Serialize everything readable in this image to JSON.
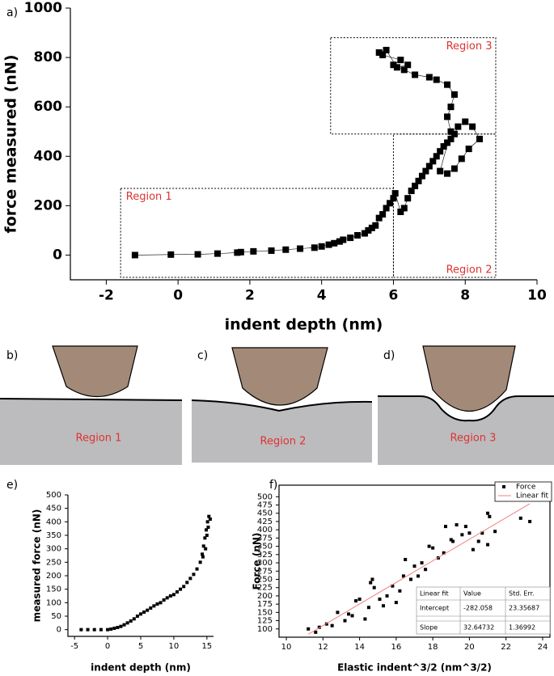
{
  "chart_data": [
    {
      "type": "line",
      "panel_label": "a)",
      "x_label": "indent depth (nm)",
      "y_label": "force measured (nN)",
      "color": "#000000",
      "annotations": [
        "Region 1",
        "Region 2",
        "Region 3"
      ],
      "xlim": [
        -3,
        10
      ],
      "xticks": [
        -2,
        0,
        2,
        4,
        6,
        8,
        10
      ],
      "ylim": [
        -100,
        1000
      ],
      "yticks": [
        0,
        200,
        400,
        600,
        800,
        1000
      ],
      "x": [
        -1.2,
        -0.2,
        0.55,
        1.1,
        1.65,
        1.75,
        2.1,
        2.6,
        3.0,
        3.4,
        3.8,
        4.0,
        4.2,
        4.35,
        4.5,
        4.6,
        4.8,
        5.0,
        5.2,
        5.3,
        5.4,
        5.5,
        5.6,
        5.7,
        5.8,
        5.9,
        6.0,
        6.05,
        6.2,
        6.3,
        6.4,
        6.5,
        6.6,
        6.7,
        6.8,
        6.9,
        7.0,
        7.1,
        7.2,
        7.3,
        7.4,
        7.5,
        7.6,
        7.7,
        7.8,
        8.0,
        8.2,
        8.4,
        8.1,
        7.9,
        7.7,
        7.5,
        7.3,
        7.6,
        7.5,
        7.6,
        7.7,
        7.5,
        7.2,
        7.0,
        6.6,
        6.3,
        6.0,
        6.2,
        5.7,
        5.6,
        5.8,
        6.1,
        6.4
      ],
      "values": [
        0,
        2,
        3,
        6,
        10,
        12,
        15,
        18,
        22,
        26,
        30,
        35,
        42,
        48,
        55,
        62,
        70,
        80,
        88,
        100,
        110,
        120,
        150,
        165,
        190,
        210,
        230,
        250,
        175,
        190,
        230,
        260,
        280,
        300,
        320,
        340,
        360,
        380,
        400,
        420,
        440,
        455,
        470,
        490,
        520,
        540,
        520,
        470,
        430,
        390,
        350,
        330,
        340,
        500,
        560,
        600,
        650,
        690,
        710,
        720,
        730,
        750,
        770,
        790,
        810,
        820,
        830,
        760,
        770
      ]
    },
    {
      "type": "scatter",
      "panel_label": "e)",
      "x_label": "indent depth (nm)",
      "y_label": "measured force (nN)",
      "color": "#000000",
      "xlim": [
        -6,
        16
      ],
      "xticks": [
        -5,
        0,
        5,
        10,
        15
      ],
      "ylim": [
        -25,
        500
      ],
      "yticks": [
        0,
        50,
        100,
        150,
        200,
        250,
        300,
        350,
        400,
        450,
        500
      ],
      "x": [
        -4,
        -3,
        -2,
        -1,
        0,
        0.5,
        1,
        1.5,
        2,
        2.5,
        3,
        3.5,
        4,
        4.5,
        5,
        5.5,
        6,
        6.5,
        7,
        7.5,
        8,
        8.5,
        9,
        9.5,
        10,
        10.5,
        11,
        11.5,
        12,
        12.5,
        13,
        13.5,
        14,
        14.3,
        14.5,
        14.7,
        14.9,
        15.1,
        15.3,
        15.5,
        15.2,
        14.8,
        14.4,
        15
      ],
      "values": [
        0,
        0,
        0,
        0,
        0,
        2,
        5,
        8,
        12,
        18,
        25,
        32,
        40,
        50,
        58,
        65,
        72,
        80,
        88,
        95,
        100,
        110,
        118,
        125,
        130,
        140,
        150,
        160,
        175,
        190,
        205,
        225,
        250,
        280,
        310,
        340,
        370,
        400,
        420,
        410,
        380,
        300,
        270,
        350
      ]
    },
    {
      "type": "scatter",
      "panel_label": "f)",
      "x_label": "Elastic indent^3/2 (nm^3/2)",
      "y_label": "Force (nN)",
      "legend": "top-right",
      "xlim": [
        9.6,
        24.4
      ],
      "xticks": [
        10,
        12,
        14,
        16,
        18,
        20,
        22,
        24
      ],
      "ylim": [
        75,
        535
      ],
      "yticks": [
        100,
        125,
        150,
        175,
        200,
        225,
        250,
        275,
        300,
        325,
        350,
        375,
        400,
        425,
        450,
        475,
        500
      ],
      "series": [
        {
          "name": "Force",
          "type": "scatter",
          "color": "#000000",
          "x": [
            11.2,
            11.6,
            11.8,
            12.2,
            12.5,
            12.8,
            13.2,
            13.4,
            13.6,
            13.8,
            14,
            14.3,
            14.5,
            14.6,
            14.7,
            14.8,
            15.1,
            15.3,
            15.5,
            15.8,
            16,
            16.2,
            16.4,
            16.5,
            16.8,
            17,
            17.2,
            17.4,
            17.6,
            17.8,
            18,
            18.3,
            18.6,
            18.7,
            19,
            19.1,
            19.3,
            19.6,
            19.8,
            20,
            20.2,
            20.5,
            20.7,
            21,
            21,
            21.1,
            21.4,
            22.8,
            23.3
          ],
          "values": [
            100,
            90,
            105,
            115,
            110,
            150,
            125,
            145,
            140,
            185,
            190,
            130,
            165,
            240,
            250,
            225,
            190,
            170,
            200,
            230,
            180,
            215,
            260,
            310,
            250,
            290,
            260,
            300,
            280,
            350,
            345,
            315,
            330,
            410,
            370,
            365,
            415,
            385,
            410,
            390,
            340,
            365,
            390,
            450,
            355,
            440,
            395,
            435,
            425
          ]
        },
        {
          "name": "Linear fit",
          "type": "line",
          "color": "#f08080",
          "x": [
            11.2,
            23.3
          ],
          "values": [
            84,
            479
          ]
        }
      ],
      "fit_table": {
        "header": [
          "Linear fit",
          "Value",
          "Std. Err."
        ],
        "rows": [
          [
            "Intercept",
            -282.058,
            23.35687
          ],
          [
            "Slope",
            32.64732,
            1.36992
          ]
        ]
      }
    }
  ],
  "diagrams": [
    {
      "panel_label": "b)",
      "label": "Region 1"
    },
    {
      "panel_label": "c)",
      "label": "Region 2"
    },
    {
      "panel_label": "d)",
      "label": "Region 3"
    }
  ]
}
